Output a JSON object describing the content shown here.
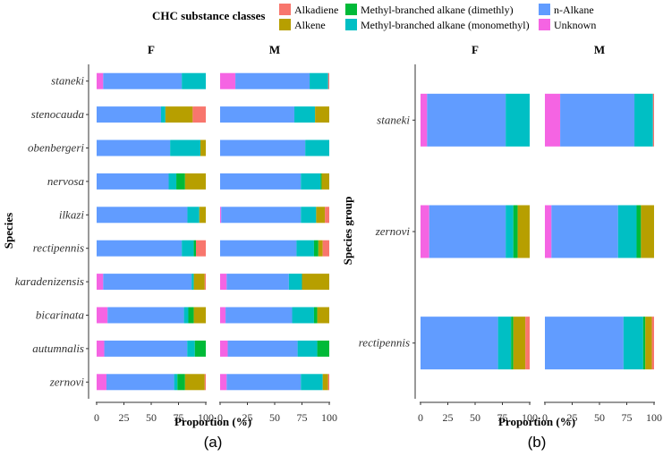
{
  "legend": {
    "title": "CHC substance classes",
    "items": [
      {
        "name": "Alkadiene",
        "color": "#F8766D"
      },
      {
        "name": "Alkene",
        "color": "#B79F00"
      },
      {
        "name": "Methyl-branched alkane (dimethly)",
        "color": "#00BA38"
      },
      {
        "name": "Methyl-branched alkane (monomethyl)",
        "color": "#00BFC4"
      },
      {
        "name": "n-Alkane",
        "color": "#619CFF"
      },
      {
        "name": "Unknown",
        "color": "#F564E3"
      }
    ]
  },
  "chart_data": [
    {
      "type": "bar",
      "orientation": "horizontal",
      "stacked": true,
      "caption": "(a)",
      "ylabel": "Species",
      "xlabel": "Proportion (%)",
      "xlim": [
        0,
        100
      ],
      "xticks": [
        "0",
        "25",
        "50",
        "75",
        "100"
      ],
      "facets": [
        "F",
        "M"
      ],
      "categories": [
        "staneki",
        "stenocauda",
        "obenbergeri",
        "nervosa",
        "ilkazi",
        "rectipennis",
        "karadenizensis",
        "bicarinata",
        "autumnalis",
        "zernovi"
      ],
      "stack_order": [
        "Unknown",
        "n-Alkane",
        "Methyl-branched alkane (monomethyl)",
        "Methyl-branched alkane (dimethly)",
        "Alkene",
        "Alkadiene"
      ],
      "values": {
        "F": {
          "staneki": [
            6,
            72,
            22,
            0,
            0,
            0
          ],
          "stenocauda": [
            0,
            59,
            4,
            0,
            25,
            12
          ],
          "obenbergeri": [
            0,
            68,
            28,
            0,
            5,
            0
          ],
          "nervosa": [
            0,
            66,
            7,
            8,
            19,
            0
          ],
          "ilkazi": [
            0,
            84,
            11,
            0,
            6,
            0
          ],
          "rectipennis": [
            0,
            78,
            11,
            2,
            0,
            9
          ],
          "karadenizensis": [
            6,
            81,
            2,
            0,
            10,
            1
          ],
          "bicarinata": [
            10,
            70,
            4,
            5,
            11,
            0
          ],
          "autumnalis": [
            7,
            76,
            7,
            10,
            0,
            0
          ],
          "zernovi": [
            9,
            62,
            3,
            7,
            18,
            1
          ]
        },
        "M": {
          "staneki": [
            14,
            68,
            17,
            0,
            0,
            1
          ],
          "stenocauda": [
            0,
            68,
            19,
            0,
            13,
            0
          ],
          "obenbergeri": [
            0,
            78,
            22,
            0,
            0,
            0
          ],
          "nervosa": [
            0,
            74,
            18,
            1,
            7,
            0
          ],
          "ilkazi": [
            1,
            73,
            14,
            0,
            8,
            4
          ],
          "rectipennis": [
            0,
            70,
            16,
            4,
            4,
            6
          ],
          "karadenizensis": [
            6,
            57,
            12,
            0,
            25,
            0
          ],
          "bicarinata": [
            5,
            61,
            20,
            3,
            11,
            0
          ],
          "autumnalis": [
            7,
            64,
            18,
            11,
            0,
            0
          ],
          "zernovi": [
            6,
            68,
            20,
            0,
            5,
            1
          ]
        }
      }
    },
    {
      "type": "bar",
      "orientation": "horizontal",
      "stacked": true,
      "caption": "(b)",
      "ylabel": "Species group",
      "xlabel": "Proportion (%)",
      "xlim": [
        0,
        100
      ],
      "xticks": [
        "0",
        "25",
        "50",
        "75",
        "100"
      ],
      "facets": [
        "F",
        "M"
      ],
      "categories": [
        "staneki",
        "zernovi",
        "rectipennis"
      ],
      "stack_order": [
        "Unknown",
        "n-Alkane",
        "Methyl-branched alkane (monomethyl)",
        "Methyl-branched alkane (dimethly)",
        "Alkene",
        "Alkadiene"
      ],
      "values": {
        "F": {
          "staneki": [
            6,
            72,
            22,
            0,
            0,
            0
          ],
          "zernovi": [
            8,
            70,
            7,
            4,
            11,
            0
          ],
          "rectipennis": [
            0,
            71,
            12,
            2,
            11,
            4
          ]
        },
        "M": {
          "staneki": [
            14,
            68,
            17,
            0,
            0,
            1
          ],
          "zernovi": [
            6,
            61,
            17,
            4,
            12,
            0
          ],
          "rectipennis": [
            0,
            72,
            18,
            2,
            6,
            2
          ]
        }
      }
    }
  ]
}
